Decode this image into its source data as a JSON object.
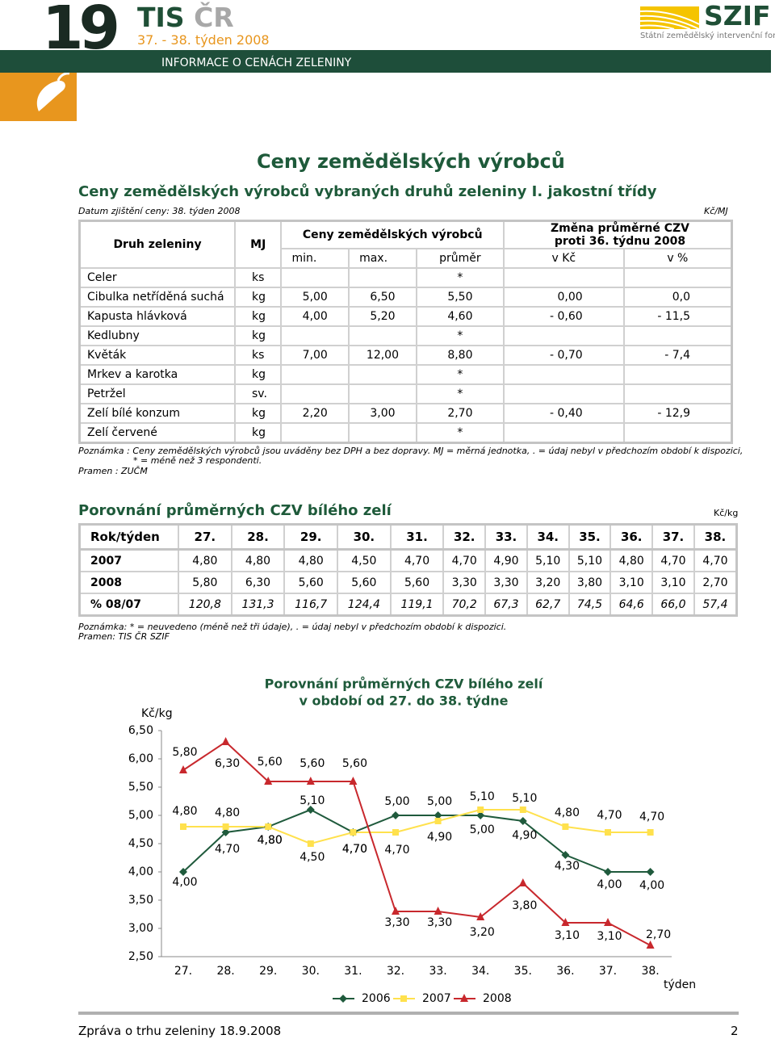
{
  "header": {
    "issue": "19",
    "brand_main": "TIS",
    "brand_sub": "ČR",
    "period": "37. - 38. týden 2008",
    "band": "INFORMACE O CENÁCH ZELENINY",
    "logo": "SZIF",
    "logo_sub": "Státní zemědělský intervenční fond"
  },
  "section1": {
    "heading": "Ceny zemědělských výrobců",
    "title": "Ceny zemědělských výrobců vybraných druhů zeleniny I. jakostní třídy",
    "date": "Datum zjištění ceny: 38. týden 2008",
    "unit": "Kč/MJ",
    "table": {
      "header1": [
        "Druh zeleniny",
        "MJ",
        "Ceny zemědělských výrobců",
        "Změna průměrné CZV  proti 36. týdnu 2008"
      ],
      "header2": [
        "min.",
        "max.",
        "průměr",
        "v Kč",
        "v %"
      ],
      "rows": [
        [
          "Celer",
          "ks",
          null,
          null,
          "*",
          null,
          null
        ],
        [
          "Cibulka netříděná suchá",
          "kg",
          "5,00",
          "6,50",
          "5,50",
          "0,00",
          "0,0"
        ],
        [
          "Kapusta hlávková",
          "kg",
          "4,00",
          "5,20",
          "4,60",
          "- 0,60",
          "- 11,5"
        ],
        [
          "Kedlubny",
          "kg",
          null,
          null,
          "*",
          null,
          null
        ],
        [
          "Květák",
          "ks",
          "7,00",
          "12,00",
          "8,80",
          "- 0,70",
          "- 7,4"
        ],
        [
          "Mrkev a karotka",
          "kg",
          null,
          null,
          "*",
          null,
          null
        ],
        [
          "Petržel",
          "sv.",
          null,
          null,
          "*",
          null,
          null
        ],
        [
          "Zelí bílé konzum",
          "kg",
          "2,20",
          "3,00",
          "2,70",
          "- 0,40",
          "- 12,9"
        ],
        [
          "Zelí červené",
          "kg",
          null,
          null,
          "*",
          null,
          null
        ]
      ]
    },
    "notes": [
      "Poznámka : Ceny zemědělských výrobců jsou uváděny bez DPH a bez dopravy. MJ = měrná jednotka, . = údaj nebyl v předchozím období k dispozici,",
      "* = méně než 3 respondenti.",
      "Pramen : ZUČM"
    ]
  },
  "section2": {
    "title": "Porovnání průměrných CZV bílého zelí",
    "unit": "Kč/kg",
    "table": {
      "header": [
        "Rok/týden",
        "27.",
        "28.",
        "29.",
        "30.",
        "31.",
        "32.",
        "33.",
        "34.",
        "35.",
        "36.",
        "37.",
        "38."
      ],
      "rows": [
        [
          "2007",
          "4,80",
          "4,80",
          "4,80",
          "4,50",
          "4,70",
          "4,70",
          "4,90",
          "5,10",
          "5,10",
          "4,80",
          "4,70",
          "4,70"
        ],
        [
          "2008",
          "5,80",
          "6,30",
          "5,60",
          "5,60",
          "5,60",
          "3,30",
          "3,30",
          "3,20",
          "3,80",
          "3,10",
          "3,10",
          "2,70"
        ],
        [
          "% 08/07",
          "120,8",
          "131,3",
          "116,7",
          "124,4",
          "119,1",
          "70,2",
          "67,3",
          "62,7",
          "74,5",
          "64,6",
          "66,0",
          "57,4"
        ]
      ]
    },
    "notes": [
      "Poznámka: * = neuvedeno (méně než tři údaje), . = údaj nebyl v předchozím období k dispozici.",
      "Pramen: TIS ČR  SZIF"
    ]
  },
  "chart_data": {
    "type": "line",
    "title": [
      "Porovnání průměrných CZV bílého zelí",
      "v období od 27. do 38. týdne"
    ],
    "y_label": "Kč/kg",
    "x_label": "týden",
    "categories": [
      "27.",
      "28.",
      "29.",
      "30.",
      "31.",
      "32.",
      "33.",
      "34.",
      "35.",
      "36.",
      "37.",
      "38."
    ],
    "ylim": [
      2.5,
      6.5
    ],
    "yticks": [
      {
        "value": 2.5,
        "label": "2,50"
      },
      {
        "value": 3,
        "label": "3,00"
      },
      {
        "value": 3.5,
        "label": "3,50"
      },
      {
        "value": 4,
        "label": "4,00"
      },
      {
        "value": 4.5,
        "label": "4,50"
      },
      {
        "value": 5,
        "label": "5,00"
      },
      {
        "value": 5.5,
        "label": "5,50"
      },
      {
        "value": 6,
        "label": "6,00"
      },
      {
        "value": 6.5,
        "label": "6,50"
      }
    ],
    "grid": false,
    "legend": "bottom",
    "series": [
      {
        "name": "2006",
        "color": "#1f5a3c",
        "marker": "diamond",
        "values": [
          4.0,
          4.7,
          4.8,
          5.1,
          4.7,
          5.0,
          5.0,
          5.0,
          4.9,
          4.3,
          4.0,
          4.0
        ],
        "value_labels": [
          "4,00",
          "4,70",
          "4,80",
          "5,10",
          "4,70",
          "5,00",
          "5,00",
          "5,00",
          "4,90",
          "4,30",
          "4,00",
          "4,00"
        ]
      },
      {
        "name": "2007",
        "color": "#ffe14d",
        "marker": "square",
        "values": [
          4.8,
          4.8,
          4.8,
          4.5,
          4.7,
          4.7,
          4.9,
          5.1,
          5.1,
          4.8,
          4.7,
          4.7
        ],
        "value_labels": [
          "4,80",
          "4,80",
          "4,80",
          "4,50",
          "4,70",
          "4,70",
          "4,90",
          "5,10",
          "5,10",
          "4,80",
          "4,70",
          "4,70"
        ]
      },
      {
        "name": "2008",
        "color": "#c8282d",
        "marker": "triangle",
        "values": [
          5.8,
          6.3,
          5.6,
          5.6,
          5.6,
          3.3,
          3.3,
          3.2,
          3.8,
          3.1,
          3.1,
          2.7
        ],
        "value_labels": [
          "5,80",
          "6,30",
          "5,60",
          "5,60",
          "5,60",
          "3,30",
          "3,30",
          "3,20",
          "3,80",
          "3,10",
          "3,10",
          "2,70"
        ]
      }
    ]
  },
  "footer": {
    "left": "Zpráva o trhu zeleniny 18.9.2008",
    "page": "2"
  }
}
